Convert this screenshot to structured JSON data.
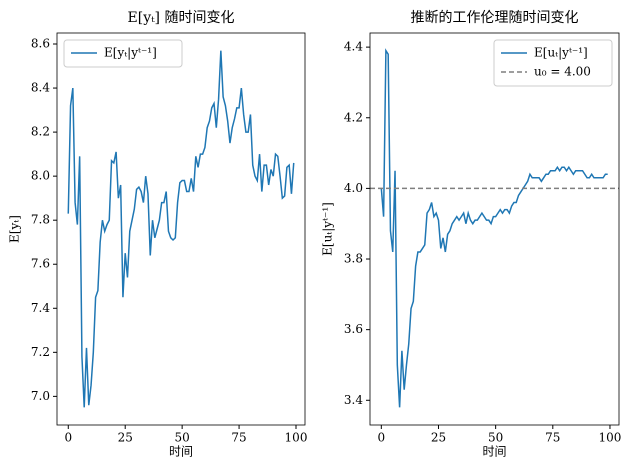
{
  "chart_data": [
    {
      "type": "line",
      "title": "E[yₜ] 随时间变化",
      "xlabel": "时间",
      "ylabel": "E[yₜ]",
      "xlim": [
        -4.95,
        103.95
      ],
      "xticks": [
        0,
        25,
        50,
        75,
        100
      ],
      "ylim": [
        6.87,
        8.65
      ],
      "yticks": [
        {
          "value": 7.0,
          "label": "7.0"
        },
        7.2,
        7.4,
        7.6,
        7.8,
        {
          "value": 8.0,
          "label": "8.0"
        },
        8.2,
        8.4,
        8.6
      ],
      "legend": "upper left",
      "x": [
        0,
        1,
        2,
        3,
        4,
        5,
        6,
        7,
        8,
        9,
        10,
        11,
        12,
        13,
        14,
        15,
        16,
        17,
        18,
        19,
        20,
        21,
        22,
        23,
        24,
        25,
        26,
        27,
        28,
        29,
        30,
        31,
        32,
        33,
        34,
        35,
        36,
        37,
        38,
        39,
        40,
        41,
        42,
        43,
        44,
        45,
        46,
        47,
        48,
        49,
        50,
        51,
        52,
        53,
        54,
        55,
        56,
        57,
        58,
        59,
        60,
        61,
        62,
        63,
        64,
        65,
        66,
        67,
        68,
        69,
        70,
        71,
        72,
        73,
        74,
        75,
        76,
        77,
        78,
        79,
        80,
        81,
        82,
        83,
        84,
        85,
        86,
        87,
        88,
        89,
        90,
        91,
        92,
        93,
        94,
        95,
        96,
        97,
        98,
        99
      ],
      "series": [
        {
          "name": "E[yₜ|yᵗ⁻¹]",
          "color": "#1f77b4",
          "values": [
            7.83,
            8.32,
            8.4,
            7.88,
            7.78,
            8.09,
            7.18,
            6.95,
            7.22,
            6.96,
            7.05,
            7.2,
            7.45,
            7.48,
            7.7,
            7.8,
            7.75,
            7.78,
            7.8,
            8.07,
            8.06,
            8.11,
            7.9,
            7.96,
            7.45,
            7.65,
            7.54,
            7.75,
            7.8,
            7.85,
            7.94,
            7.95,
            7.93,
            7.88,
            8.0,
            7.92,
            7.64,
            7.8,
            7.72,
            7.76,
            7.8,
            7.88,
            7.88,
            7.93,
            7.75,
            7.72,
            7.71,
            7.72,
            7.88,
            7.97,
            7.98,
            7.98,
            7.93,
            7.93,
            7.99,
            7.93,
            8.09,
            8.04,
            8.1,
            8.1,
            8.13,
            8.22,
            8.25,
            8.31,
            8.33,
            8.22,
            8.35,
            8.57,
            8.36,
            8.32,
            8.25,
            8.15,
            8.22,
            8.26,
            8.31,
            8.31,
            8.4,
            8.28,
            8.2,
            8.2,
            8.28,
            8.05,
            8.0,
            7.98,
            8.1,
            7.93,
            8.05,
            8.05,
            7.96,
            8.03,
            8.0,
            8.1,
            8.09,
            8.0,
            7.9,
            7.91,
            8.04,
            8.05,
            7.92,
            8.06
          ]
        }
      ]
    },
    {
      "type": "line",
      "title": "推断的工作伦理随时间变化",
      "xlabel": "时间",
      "ylabel": "E[uₜ|yᵗ⁻¹]",
      "xlim": [
        -4.95,
        103.95
      ],
      "xticks": [
        0,
        25,
        50,
        75,
        100
      ],
      "ylim": [
        3.33,
        4.44
      ],
      "yticks": [
        3.4,
        3.6,
        3.8,
        {
          "value": 4.0,
          "label": "4.0"
        },
        4.2,
        4.4
      ],
      "legend": "upper right",
      "hline": {
        "value": 4.0,
        "label": "u₀ = 4.00",
        "color": "#7f7f7f"
      },
      "x": [
        0,
        1,
        2,
        3,
        4,
        5,
        6,
        7,
        8,
        9,
        10,
        11,
        12,
        13,
        14,
        15,
        16,
        17,
        18,
        19,
        20,
        21,
        22,
        23,
        24,
        25,
        26,
        27,
        28,
        29,
        30,
        31,
        32,
        33,
        34,
        35,
        36,
        37,
        38,
        39,
        40,
        41,
        42,
        43,
        44,
        45,
        46,
        47,
        48,
        49,
        50,
        51,
        52,
        53,
        54,
        55,
        56,
        57,
        58,
        59,
        60,
        61,
        62,
        63,
        64,
        65,
        66,
        67,
        68,
        69,
        70,
        71,
        72,
        73,
        74,
        75,
        76,
        77,
        78,
        79,
        80,
        81,
        82,
        83,
        84,
        85,
        86,
        87,
        88,
        89,
        90,
        91,
        92,
        93,
        94,
        95,
        96,
        97,
        98,
        99
      ],
      "series": [
        {
          "name": "E[uₜ|yᵗ⁻¹]",
          "color": "#1f77b4",
          "values": [
            4.0,
            3.92,
            4.39,
            4.38,
            3.88,
            3.82,
            4.05,
            3.5,
            3.38,
            3.54,
            3.43,
            3.5,
            3.56,
            3.66,
            3.68,
            3.78,
            3.82,
            3.82,
            3.83,
            3.84,
            3.93,
            3.94,
            3.96,
            3.92,
            3.93,
            3.91,
            3.83,
            3.86,
            3.82,
            3.87,
            3.88,
            3.9,
            3.91,
            3.92,
            3.91,
            3.92,
            3.93,
            3.9,
            3.93,
            3.91,
            3.9,
            3.91,
            3.91,
            3.92,
            3.93,
            3.92,
            3.91,
            3.91,
            3.9,
            3.92,
            3.92,
            3.93,
            3.94,
            3.93,
            3.94,
            3.94,
            3.93,
            3.95,
            3.96,
            3.96,
            3.98,
            3.99,
            4.0,
            4.01,
            4.02,
            4.04,
            4.03,
            4.03,
            4.03,
            4.03,
            4.02,
            4.03,
            4.04,
            4.04,
            4.05,
            4.05,
            4.05,
            4.06,
            4.05,
            4.06,
            4.06,
            4.05,
            4.06,
            4.05,
            4.04,
            4.05,
            4.05,
            4.05,
            4.05,
            4.04,
            4.03,
            4.03,
            4.04,
            4.03,
            4.03,
            4.03,
            4.03,
            4.03,
            4.04,
            4.04
          ]
        }
      ]
    }
  ]
}
